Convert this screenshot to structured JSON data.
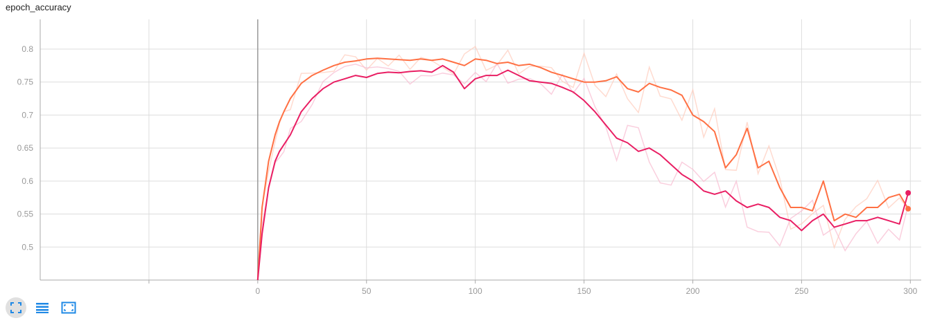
{
  "chart_data": {
    "type": "line",
    "title": "epoch_accuracy",
    "xlabel": "",
    "ylabel": "",
    "xlim": [
      -100,
      305
    ],
    "ylim": [
      0.45,
      0.845
    ],
    "grid": true,
    "xticks": [
      0,
      50,
      100,
      150,
      200,
      250,
      300
    ],
    "xtick_labels": [
      "0",
      "50",
      "100",
      "150",
      "200",
      "250",
      "300"
    ],
    "yticks": [
      0.5,
      0.55,
      0.6,
      0.65,
      0.7,
      0.75,
      0.8
    ],
    "ytick_labels": [
      "0.5",
      "0.55",
      "0.6",
      "0.65",
      "0.7",
      "0.75",
      "0.8"
    ],
    "series": [
      {
        "color": "#ff7043",
        "raw_color": "#ffccbc",
        "x": [
          0,
          2,
          5,
          8,
          10,
          12,
          15,
          20,
          25,
          30,
          35,
          40,
          45,
          50,
          55,
          60,
          65,
          70,
          75,
          80,
          85,
          90,
          95,
          100,
          105,
          110,
          115,
          120,
          125,
          130,
          135,
          140,
          145,
          150,
          155,
          160,
          165,
          170,
          175,
          180,
          185,
          190,
          195,
          200,
          205,
          210,
          215,
          220,
          225,
          230,
          235,
          240,
          245,
          250,
          255,
          260,
          265,
          270,
          275,
          280,
          285,
          290,
          295,
          299
        ],
        "values": [
          0.45,
          0.56,
          0.63,
          0.67,
          0.69,
          0.705,
          0.725,
          0.748,
          0.76,
          0.768,
          0.775,
          0.78,
          0.782,
          0.785,
          0.786,
          0.785,
          0.784,
          0.783,
          0.785,
          0.783,
          0.785,
          0.78,
          0.775,
          0.785,
          0.783,
          0.778,
          0.78,
          0.775,
          0.777,
          0.772,
          0.765,
          0.76,
          0.755,
          0.75,
          0.75,
          0.752,
          0.758,
          0.74,
          0.735,
          0.748,
          0.742,
          0.738,
          0.73,
          0.7,
          0.69,
          0.675,
          0.62,
          0.64,
          0.68,
          0.62,
          0.63,
          0.59,
          0.56,
          0.56,
          0.555,
          0.6,
          0.54,
          0.55,
          0.545,
          0.56,
          0.56,
          0.575,
          0.58,
          0.558
        ]
      },
      {
        "color": "#e91e63",
        "raw_color": "#f8bbd0",
        "x": [
          0,
          2,
          5,
          8,
          10,
          12,
          15,
          20,
          25,
          30,
          35,
          40,
          45,
          50,
          55,
          60,
          65,
          70,
          75,
          80,
          85,
          90,
          95,
          100,
          105,
          110,
          115,
          120,
          125,
          130,
          135,
          140,
          145,
          150,
          155,
          160,
          165,
          170,
          175,
          180,
          185,
          190,
          195,
          200,
          205,
          210,
          215,
          220,
          225,
          230,
          235,
          240,
          245,
          250,
          255,
          260,
          265,
          270,
          275,
          280,
          285,
          290,
          295,
          299
        ],
        "values": [
          0.45,
          0.52,
          0.59,
          0.63,
          0.645,
          0.655,
          0.67,
          0.705,
          0.725,
          0.74,
          0.75,
          0.755,
          0.76,
          0.757,
          0.763,
          0.765,
          0.764,
          0.766,
          0.767,
          0.765,
          0.775,
          0.765,
          0.74,
          0.755,
          0.76,
          0.76,
          0.768,
          0.76,
          0.752,
          0.75,
          0.748,
          0.742,
          0.735,
          0.722,
          0.705,
          0.685,
          0.665,
          0.658,
          0.645,
          0.65,
          0.64,
          0.625,
          0.61,
          0.6,
          0.585,
          0.58,
          0.585,
          0.57,
          0.56,
          0.565,
          0.56,
          0.545,
          0.54,
          0.525,
          0.54,
          0.55,
          0.53,
          0.535,
          0.54,
          0.54,
          0.545,
          0.54,
          0.535,
          0.582
        ]
      }
    ]
  },
  "toolbar": {
    "buttons": [
      {
        "icon": "fullscreen-icon",
        "active": true
      },
      {
        "icon": "data-series-icon",
        "active": false
      },
      {
        "icon": "fit-domain-icon",
        "active": false
      }
    ]
  },
  "colors": {
    "grid": "#dddddd",
    "axis": "#aaaaaa",
    "tick_text": "#999999",
    "toolbar_blue": "#1e88e5"
  }
}
